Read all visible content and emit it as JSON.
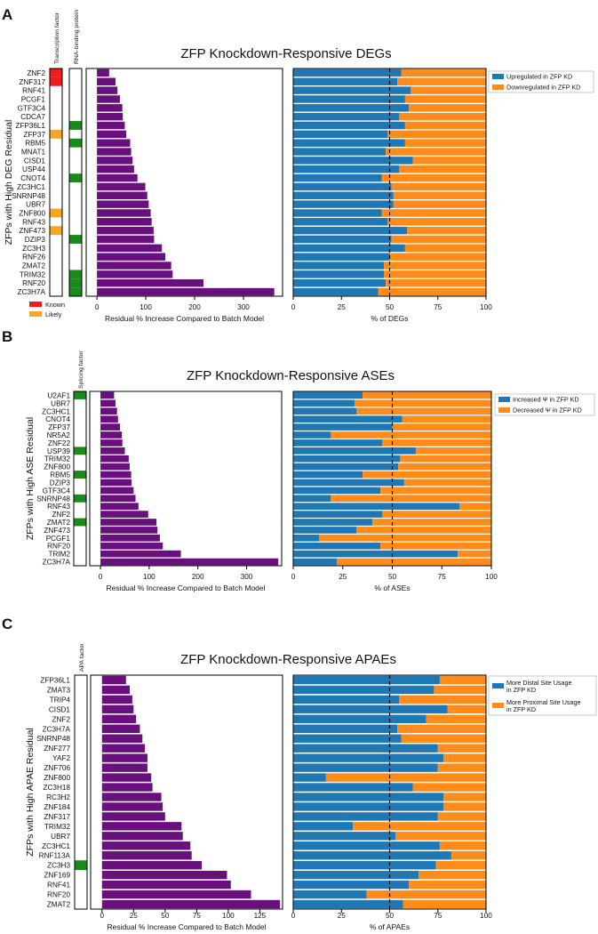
{
  "colors": {
    "purple": "#6a0f7e",
    "blue": "#1f78b4",
    "orange": "#ff8c1a",
    "known": "#ee1c1c",
    "likely": "#f5a623",
    "green": "#1a8a1a"
  },
  "annotation_legend": [
    {
      "label": "Known",
      "color": "#ee1c1c"
    },
    {
      "label": "Likely",
      "color": "#f5a623"
    }
  ],
  "chart_data": [
    {
      "panel": "A",
      "type": "bar",
      "title": "ZFP Knockdown-Responsive DEGs",
      "ylabel": "ZFPs with High DEG Residual",
      "annotation_columns": [
        "Transcription factor",
        "RNA-binding protein"
      ],
      "genes": [
        "ZNF2",
        "ZNF317",
        "RNF41",
        "PCGF1",
        "GTF3C4",
        "CDCA7",
        "ZFP36L1",
        "ZFP37",
        "RBM5",
        "MNAT1",
        "CISD1",
        "USP44",
        "CNOT4",
        "ZC3HC1",
        "SNRNP48",
        "UBR7",
        "ZNF800",
        "RNF43",
        "ZNF473",
        "DZIP3",
        "ZC3H3",
        "RNF26",
        "ZMAT2",
        "TRIM32",
        "RNF20",
        "ZC3H7A"
      ],
      "annotations": {
        "Transcription factor": [
          "Known",
          "Known",
          "",
          "",
          "",
          "",
          "",
          "Likely",
          "",
          "",
          "",
          "",
          "",
          "",
          "",
          "",
          "Likely",
          "",
          "Likely",
          "",
          "",
          "",
          "",
          "",
          "",
          ""
        ],
        "RNA-binding protein": [
          "",
          "",
          "",
          "",
          "",
          "",
          "Yes",
          "",
          "Yes",
          "",
          "",
          "",
          "Yes",
          "",
          "",
          "",
          "",
          "",
          "",
          "Yes",
          "",
          "",
          "",
          "Yes",
          "Yes",
          "Yes"
        ]
      },
      "residual": {
        "xlabel": "Residual % Increase Compared to Batch Model",
        "xlim": [
          -22,
          380
        ],
        "ticks": [
          0,
          100,
          200,
          300
        ],
        "values": [
          25,
          38,
          42,
          47,
          52,
          53,
          57,
          60,
          68,
          70,
          73,
          76,
          83,
          99,
          103,
          106,
          110,
          112,
          116,
          117,
          133,
          140,
          152,
          155,
          218,
          363
        ]
      },
      "split": {
        "xlabel": "% of DEGs",
        "xlim": [
          0,
          100
        ],
        "ticks": [
          0,
          25,
          50,
          75,
          100
        ],
        "dashed_at": 50,
        "legend": [
          "Upregulated in ZFP KD",
          "Downregulated in ZFP KD"
        ],
        "values": [
          56,
          54,
          61,
          58,
          60,
          55,
          58,
          49,
          58,
          48,
          62,
          55,
          46,
          51,
          52,
          52,
          46,
          49,
          59,
          51,
          58,
          50,
          47,
          47,
          48,
          44
        ]
      }
    },
    {
      "panel": "B",
      "type": "bar",
      "title": "ZFP Knockdown-Responsive ASEs",
      "ylabel": "ZFPs with High ASE Residual",
      "annotation_columns": [
        "Splicing factor"
      ],
      "genes": [
        "U2AF1",
        "UBR7",
        "ZC3HC1",
        "CNOT4",
        "ZFP37",
        "NR5A2",
        "ZNF22",
        "USP39",
        "TRIM32",
        "ZNF800",
        "RBM5",
        "DZIP3",
        "GTF3C4",
        "SNRNP48",
        "RNF43",
        "ZNF2",
        "ZMAT2",
        "ZNF473",
        "PCGF1",
        "RNF20",
        "TRIM2",
        "ZC3H7A"
      ],
      "annotations": {
        "Splicing factor": [
          "Yes",
          "",
          "",
          "",
          "",
          "",
          "",
          "Yes",
          "",
          "",
          "Yes",
          "",
          "",
          "Yes",
          "",
          "",
          "Yes",
          "",
          "",
          "",
          "",
          ""
        ]
      },
      "residual": {
        "xlabel": "Residual % Increase Compared to Batch Model",
        "xlim": [
          -22,
          372
        ],
        "ticks": [
          0,
          100,
          200,
          300
        ],
        "values": [
          28,
          31,
          34,
          36,
          40,
          44,
          45,
          50,
          58,
          60,
          63,
          64,
          68,
          72,
          78,
          98,
          115,
          117,
          122,
          128,
          165,
          365
        ]
      },
      "split": {
        "xlabel": "% of ASEs",
        "xlim": [
          0,
          100
        ],
        "ticks": [
          0,
          25,
          50,
          75,
          100
        ],
        "dashed_at": 50,
        "legend": [
          "Increased Ψ in ZFP KD",
          "Decreased Ψ in ZFP KD"
        ],
        "values": [
          35,
          31,
          32,
          55,
          50,
          19,
          45,
          62,
          54,
          53,
          35,
          56,
          44,
          19,
          84,
          45,
          40,
          32,
          13,
          44,
          83,
          22
        ]
      }
    },
    {
      "panel": "C",
      "type": "bar",
      "title": "ZFP Knockdown-Responsive APAEs",
      "ylabel": "ZFPs with High APAE Residual",
      "annotation_columns": [
        "APA factor"
      ],
      "genes": [
        "ZFP36L1",
        "ZMAT3",
        "TRIP4",
        "CISD1",
        "ZNF2",
        "ZC3H7A",
        "SNRNP48",
        "ZNF277",
        "YAF2",
        "ZNF706",
        "ZNF800",
        "ZC3H18",
        "RC3H2",
        "ZNF184",
        "ZNF317",
        "TRIM32",
        "UBR7",
        "ZC3HC1",
        "RNF113A",
        "ZC3H3",
        "ZNF169",
        "RNF41",
        "RNF20",
        "ZMAT2"
      ],
      "annotations": {
        "APA factor": [
          "",
          "",
          "",
          "",
          "",
          "",
          "",
          "",
          "",
          "",
          "",
          "",
          "",
          "",
          "",
          "",
          "",
          "",
          "",
          "Yes",
          "",
          "",
          "",
          ""
        ]
      },
      "residual": {
        "xlabel": "Residual % Increase Compared to Batch Model",
        "xlim": [
          -9,
          143
        ],
        "ticks": [
          0,
          25,
          50,
          75,
          100,
          125
        ],
        "values": [
          19,
          22,
          24,
          25,
          27,
          30,
          32,
          34,
          36,
          36,
          39,
          40,
          47,
          48,
          50,
          63,
          64,
          70,
          71,
          79,
          99,
          102,
          118,
          141
        ]
      },
      "split": {
        "xlabel": "% of APAEs",
        "xlim": [
          0,
          100
        ],
        "ticks": [
          0,
          25,
          50,
          75,
          100
        ],
        "dashed_at": 50,
        "legend": [
          "More Distal Site Usage in ZFP KD",
          "More Proximal Site Usage in ZFP KD"
        ],
        "values": [
          76,
          73,
          55,
          80,
          69,
          54,
          56,
          75,
          78,
          75,
          17,
          62,
          78,
          78,
          75,
          31,
          53,
          76,
          82,
          74,
          65,
          60,
          38,
          57
        ]
      }
    }
  ]
}
